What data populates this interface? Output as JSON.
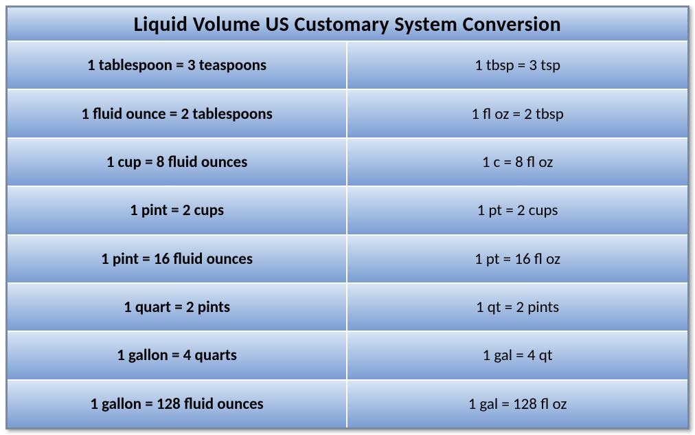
{
  "title": "Liquid Volume US Customary System Conversion",
  "gradient": {
    "top": "#d8e5f4",
    "bottom": "#7b9dd3"
  },
  "border_color": "#7a8aa0",
  "text_color": "#000000",
  "title_fontsize": 30,
  "cell_fontsize": 23,
  "rows": [
    {
      "long": "1 tablespoon = 3 teaspoons",
      "short": "1 tbsp = 3 tsp"
    },
    {
      "long": "1 fluid ounce = 2 tablespoons",
      "short": "1 fl oz = 2 tbsp"
    },
    {
      "long": "1 cup = 8 fluid ounces",
      "short": "1 c = 8 fl oz"
    },
    {
      "long": "1 pint = 2 cups",
      "short": "1 pt = 2 cups"
    },
    {
      "long": "1 pint = 16 fluid ounces",
      "short": "1 pt = 16 fl oz"
    },
    {
      "long": "1 quart = 2 pints",
      "short": "1 qt = 2 pints"
    },
    {
      "long": "1 gallon = 4 quarts",
      "short": "1 gal = 4 qt"
    },
    {
      "long": "1 gallon = 128 fluid ounces",
      "short": "1 gal = 128 fl oz"
    }
  ]
}
